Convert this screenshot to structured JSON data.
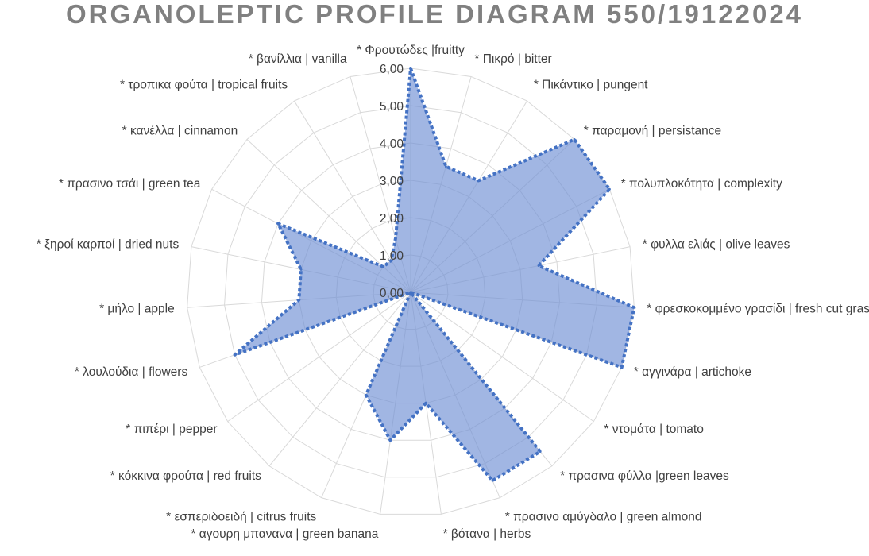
{
  "chart_data": {
    "type": "radar",
    "title": "ORGANOLEPTIC PROFILE DIAGRAM 550/19122024",
    "rlim": [
      0,
      6
    ],
    "ticks": [
      "0,00",
      "1,00",
      "2,00",
      "3,00",
      "4,00",
      "5,00",
      "6,00"
    ],
    "grid": true,
    "legend": "none",
    "categories": [
      "* Φρουτώδες |fruitty",
      "* Πικρό | bitter",
      "* Πικάντικο | pungent",
      "* παραμονή | persistance",
      "* πολυπλοκότητα | complexity",
      "* φυλλα ελιάς | olive leaves",
      "* φρεσκοκομμένο γρασίδι | fresh cut grass",
      "* αγγινάρα | artichoke",
      "* ντομάτα | tomato",
      "* πρασινα φύλλα |green leaves",
      "* πρασινο αμύγδαλο | green almond",
      "* βότανα | herbs",
      "* αγουρη μπανανα | green banana",
      "* εσπεριδοειδή | citrus fruits",
      "* κόκκινα φρούτα | red fruits",
      "* πιπέρι | pepper",
      "* λουλούδια | flowers",
      "* μήλο | apple",
      "* ξηροί καρποί | dried nuts",
      "* πρασινο τσάι | green tea",
      "* κανέλλα | cinnamon",
      "* τροπικα φούτα | tropical fruits",
      "* βανίλλια | vanilla"
    ],
    "series": [
      {
        "values": [
          6.0,
          3.5,
          3.5,
          6.0,
          6.0,
          3.5,
          6.0,
          6.0,
          0.0,
          5.5,
          5.5,
          3.0,
          4.0,
          3.0,
          0.0,
          0.0,
          5.0,
          3.0,
          3.0,
          4.0,
          1.0,
          1.0,
          1.5
        ]
      }
    ],
    "colors": {
      "fill": "#6f8fd4",
      "fill_opacity": 0.65,
      "stroke": "#4472c4",
      "grid": "#d9d9d9",
      "label": "#404040",
      "title": "#808080"
    }
  }
}
